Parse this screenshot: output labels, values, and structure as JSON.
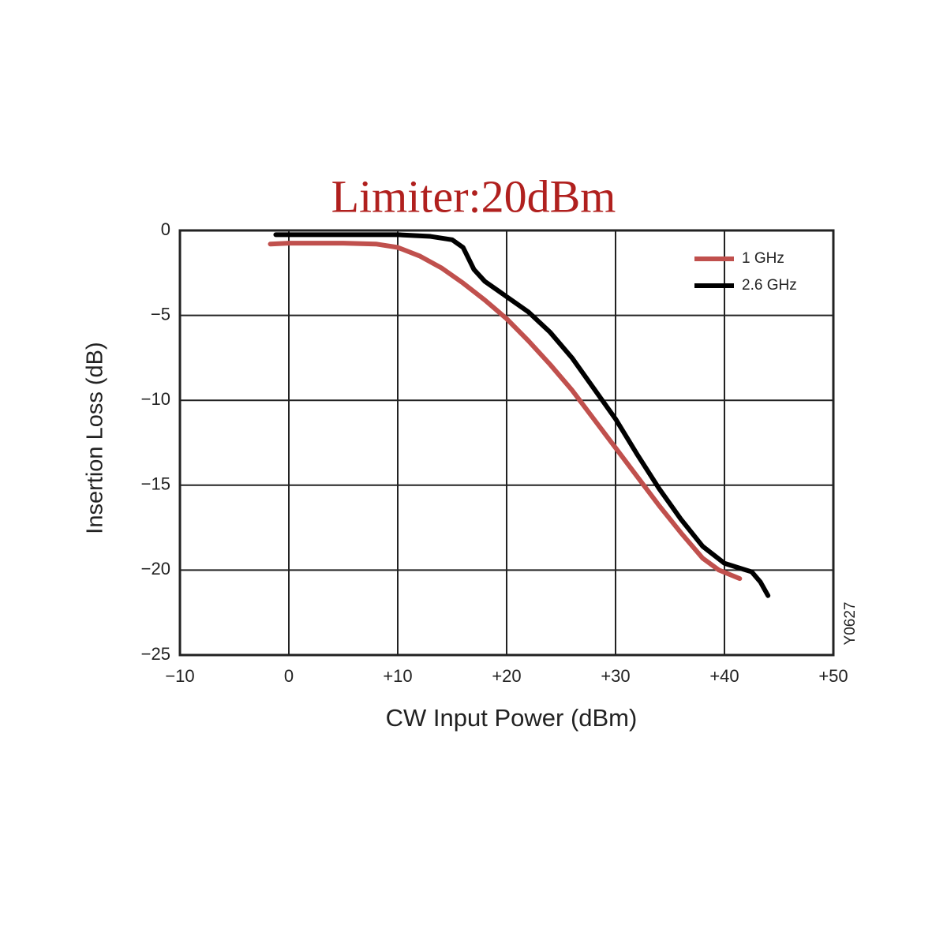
{
  "chart_data": {
    "type": "line",
    "title": "Limiter:20dBm",
    "x_label": "CW Input Power (dBm)",
    "y_label": "Insertion Loss (dB)",
    "annotation": "Y0627",
    "xlim": [
      -10,
      50
    ],
    "ylim": [
      -25,
      0
    ],
    "xticks": [
      {
        "value": -10,
        "label": "−10"
      },
      0,
      {
        "value": 10,
        "label": "+10"
      },
      {
        "value": 20,
        "label": "+20"
      },
      {
        "value": 30,
        "label": "+30"
      },
      {
        "value": 40,
        "label": "+40"
      },
      {
        "value": 50,
        "label": "+50"
      }
    ],
    "yticks": [
      0,
      {
        "value": -5,
        "label": "−5"
      },
      {
        "value": -10,
        "label": "−10"
      },
      {
        "value": -15,
        "label": "−15"
      },
      {
        "value": -20,
        "label": "−20"
      },
      {
        "value": -25,
        "label": "−25"
      }
    ],
    "grid": true,
    "legend": "upper right",
    "series": [
      {
        "name": "1 GHz",
        "color": "#c0504d",
        "x": [
          -1.7,
          0,
          5,
          8,
          10,
          12,
          14,
          16,
          18,
          20,
          22,
          24,
          26,
          28,
          30,
          32,
          34,
          36,
          38,
          39.5,
          41.4
        ],
        "values": [
          -0.8,
          -0.75,
          -0.75,
          -0.8,
          -1.0,
          -1.5,
          -2.2,
          -3.1,
          -4.1,
          -5.2,
          -6.5,
          -7.9,
          -9.4,
          -11.1,
          -12.8,
          -14.5,
          -16.2,
          -17.8,
          -19.3,
          -20.0,
          -20.5
        ]
      },
      {
        "name": "2.6 GHz",
        "color": "#000000",
        "x": [
          -1.2,
          5,
          10,
          13,
          15,
          16,
          17,
          18,
          20,
          22,
          24,
          26,
          28,
          30,
          32,
          34,
          36,
          38,
          40,
          41,
          42.5,
          43.3,
          44
        ],
        "values": [
          -0.25,
          -0.25,
          -0.25,
          -0.35,
          -0.55,
          -1.0,
          -2.3,
          -3.0,
          -3.9,
          -4.8,
          -6.0,
          -7.5,
          -9.3,
          -11.1,
          -13.2,
          -15.2,
          -17.0,
          -18.6,
          -19.6,
          -19.8,
          -20.1,
          -20.7,
          -21.5
        ]
      }
    ]
  }
}
